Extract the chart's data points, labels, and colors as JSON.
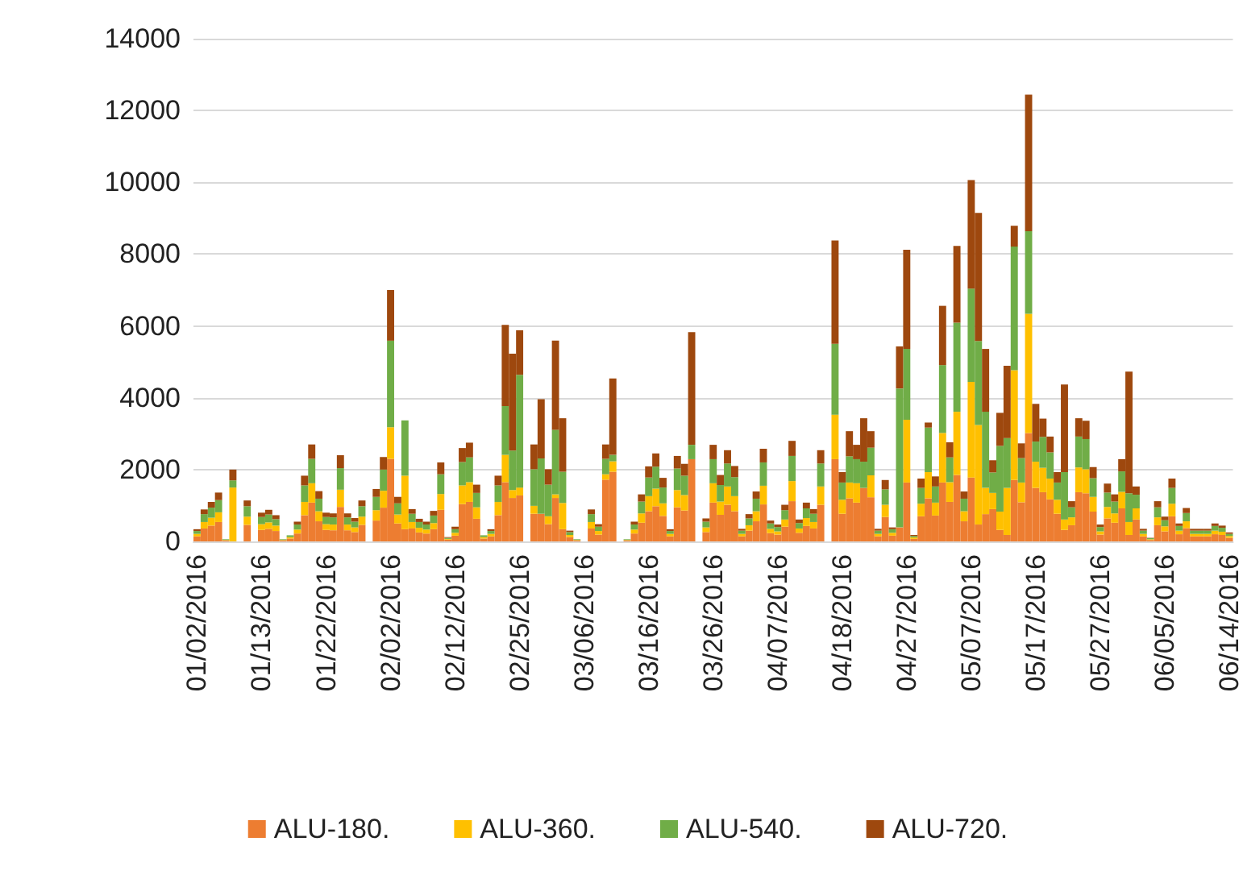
{
  "chart_data": {
    "type": "bar",
    "stacked": true,
    "grid": "y",
    "legend": "bottom",
    "ylim": [
      0,
      14000
    ],
    "yticks": [
      0,
      2000,
      4000,
      6000,
      8000,
      10000,
      12000,
      14000
    ],
    "categories": [
      "01/02/2016",
      null,
      null,
      null,
      null,
      null,
      null,
      null,
      null,
      "01/13/2016",
      null,
      null,
      null,
      null,
      null,
      null,
      null,
      null,
      "01/22/2016",
      null,
      null,
      null,
      null,
      null,
      null,
      null,
      null,
      "02/02/2016",
      null,
      null,
      null,
      null,
      null,
      null,
      null,
      null,
      "02/12/2016",
      null,
      null,
      null,
      null,
      null,
      null,
      null,
      null,
      "02/25/2016",
      null,
      null,
      null,
      null,
      null,
      null,
      null,
      null,
      "03/06/2016",
      null,
      null,
      null,
      null,
      null,
      null,
      null,
      null,
      "03/16/2016",
      null,
      null,
      null,
      null,
      null,
      null,
      null,
      null,
      "03/26/2016",
      null,
      null,
      null,
      null,
      null,
      null,
      null,
      null,
      "04/07/2016",
      null,
      null,
      null,
      null,
      null,
      null,
      null,
      null,
      "04/18/2016",
      null,
      null,
      null,
      null,
      null,
      null,
      null,
      null,
      "04/27/2016",
      null,
      null,
      null,
      null,
      null,
      null,
      null,
      null,
      "05/07/2016",
      null,
      null,
      null,
      null,
      null,
      null,
      null,
      null,
      "05/17/2016",
      null,
      null,
      null,
      null,
      null,
      null,
      null,
      null,
      "05/27/2016",
      null,
      null,
      null,
      null,
      null,
      null,
      null,
      null,
      "06/05/2016",
      null,
      null,
      null,
      null,
      null,
      null,
      null,
      null,
      "06/14/2016"
    ],
    "series": [
      {
        "name": "ALU-180.",
        "color": "#ed7d31",
        "values": [
          140,
          360,
          440,
          540,
          30,
          0,
          0,
          460,
          0,
          320,
          350,
          290,
          30,
          80,
          220,
          730,
          1080,
          560,
          320,
          310,
          960,
          310,
          260,
          460,
          0,
          580,
          940,
          2300,
          500,
          340,
          360,
          250,
          220,
          340,
          880,
          50,
          160,
          1040,
          1100,
          630,
          80,
          140,
          730,
          1650,
          1210,
          1280,
          0,
          770,
          770,
          480,
          1210,
          340,
          120,
          30,
          0,
          360,
          190,
          1720,
          1940,
          0,
          30,
          220,
          520,
          840,
          980,
          710,
          140,
          950,
          860,
          2290,
          0,
          260,
          1080,
          740,
          1020,
          840,
          140,
          300,
          560,
          1030,
          230,
          190,
          410,
          1120,
          240,
          430,
          360,
          1020,
          0,
          2290,
          770,
          1200,
          1080,
          1490,
          1230,
          140,
          680,
          160,
          390,
          1640,
          70,
          700,
          1200,
          720,
          1640,
          1100,
          1850,
          560,
          1780,
          470,
          760,
          900,
          320,
          180,
          1710,
          1090,
          3020,
          1490,
          1370,
          1170,
          770,
          320,
          450,
          1370,
          1340,
          830,
          190,
          640,
          520,
          920,
          180,
          610,
          140,
          40,
          450,
          280,
          700,
          200,
          370,
          140,
          140,
          140,
          200,
          180,
          100
        ]
      },
      {
        "name": "ALU-360.",
        "color": "#ffc000",
        "values": [
          70,
          180,
          220,
          270,
          10,
          1500,
          0,
          230,
          0,
          160,
          180,
          150,
          10,
          40,
          110,
          370,
          540,
          280,
          160,
          160,
          480,
          160,
          130,
          230,
          0,
          290,
          470,
          880,
          250,
          1490,
          180,
          130,
          110,
          170,
          440,
          20,
          80,
          520,
          550,
          320,
          40,
          70,
          370,
          760,
          220,
          220,
          0,
          220,
          0,
          220,
          100,
          730,
          60,
          10,
          0,
          180,
          100,
          150,
          290,
          0,
          10,
          110,
          260,
          420,
          490,
          350,
          70,
          480,
          430,
          0,
          0,
          130,
          540,
          370,
          510,
          420,
          70,
          150,
          280,
          520,
          120,
          90,
          200,
          560,
          120,
          220,
          180,
          510,
          0,
          1240,
          390,
          440,
          540,
          0,
          610,
          70,
          340,
          80,
          0,
          1750,
          40,
          350,
          730,
          360,
          1380,
          550,
          1760,
          280,
          2660,
          2770,
          730,
          450,
          510,
          1310,
          3060,
          550,
          3320,
          730,
          680,
          580,
          390,
          290,
          220,
          690,
          670,
          410,
          90,
          320,
          260,
          460,
          360,
          310,
          70,
          20,
          220,
          140,
          350,
          100,
          190,
          70,
          70,
          70,
          100,
          90,
          50
        ]
      },
      {
        "name": "ALU-540.",
        "color": "#70ad47",
        "values": [
          80,
          220,
          280,
          340,
          20,
          200,
          0,
          290,
          0,
          200,
          220,
          180,
          20,
          50,
          140,
          460,
          680,
          350,
          200,
          200,
          600,
          200,
          160,
          290,
          0,
          370,
          590,
          2410,
          310,
          1540,
          230,
          160,
          140,
          210,
          550,
          30,
          100,
          650,
          690,
          400,
          50,
          80,
          460,
          1360,
          1100,
          3140,
          0,
          1020,
          1540,
          880,
          1800,
          870,
          80,
          20,
          0,
          220,
          120,
          430,
          180,
          0,
          20,
          140,
          330,
          520,
          610,
          440,
          80,
          600,
          540,
          400,
          0,
          160,
          670,
          460,
          640,
          530,
          90,
          190,
          350,
          650,
          150,
          120,
          260,
          700,
          150,
          270,
          230,
          640,
          0,
          1970,
          480,
          730,
          670,
          730,
          770,
          90,
          430,
          100,
          3870,
          1970,
          40,
          440,
          1240,
          450,
          1890,
          690,
          2480,
          350,
          2600,
          2340,
          2120,
          570,
          1830,
          1390,
          3440,
          680,
          2300,
          560,
          860,
          730,
          480,
          1320,
          280,
          860,
          840,
          520,
          120,
          400,
          330,
          570,
          800,
          380,
          90,
          30,
          280,
          170,
          440,
          130,
          230,
          90,
          90,
          90,
          130,
          110,
          60
        ]
      },
      {
        "name": "ALU-720.",
        "color": "#9e480e",
        "values": [
          50,
          130,
          160,
          210,
          0,
          300,
          0,
          160,
          0,
          120,
          130,
          110,
          0,
          0,
          80,
          270,
          400,
          210,
          120,
          110,
          360,
          110,
          100,
          160,
          0,
          220,
          350,
          1410,
          180,
          0,
          130,
          90,
          80,
          130,
          330,
          20,
          70,
          390,
          410,
          230,
          0,
          50,
          270,
          2260,
          2700,
          1240,
          0,
          690,
          1650,
          430,
          2480,
          1490,
          40,
          0,
          0,
          130,
          70,
          400,
          2130,
          0,
          0,
          80,
          200,
          310,
          370,
          270,
          50,
          350,
          330,
          3140,
          0,
          90,
          400,
          280,
          370,
          310,
          50,
          120,
          200,
          380,
          80,
          70,
          150,
          420,
          100,
          160,
          130,
          370,
          0,
          2880,
          290,
          700,
          400,
          1210,
          460,
          50,
          260,
          50,
          1170,
          2760,
          30,
          260,
          140,
          280,
          1650,
          420,
          2140,
          200,
          3020,
          3570,
          1750,
          340,
          920,
          2010,
          580,
          410,
          3800,
          1050,
          510,
          440,
          290,
          2440,
          170,
          510,
          510,
          310,
          70,
          250,
          200,
          340,
          3390,
          230,
          50,
          10,
          170,
          100,
          260,
          70,
          140,
          50,
          50,
          50,
          70,
          60,
          40
        ]
      }
    ]
  }
}
